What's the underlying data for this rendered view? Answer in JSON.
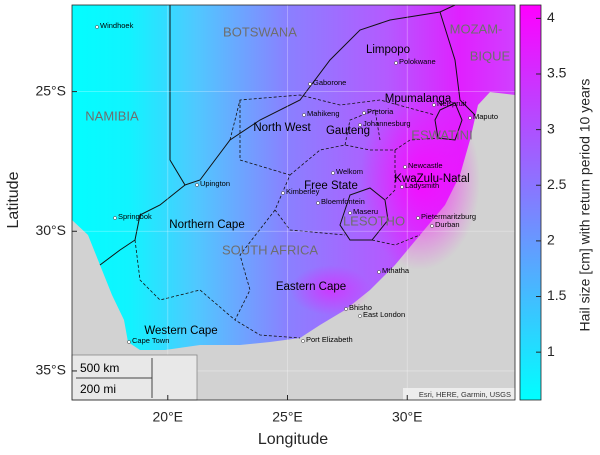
{
  "chart_data": {
    "type": "map",
    "x_label": "Longitude",
    "y_label": "Latitude",
    "xlim": [
      16,
      34.5
    ],
    "ylim": [
      -36.04,
      -21.9
    ],
    "xticks": [
      {
        "value": 20,
        "label": "20°E"
      },
      {
        "value": 25,
        "label": "25°E"
      },
      {
        "value": 30,
        "label": "30°E"
      }
    ],
    "yticks": [
      {
        "value": -25,
        "label": "25°S"
      },
      {
        "value": -30,
        "label": "30°S"
      },
      {
        "value": -35,
        "label": "35°S"
      }
    ],
    "grid": true,
    "colorbar": {
      "label": "Hail size [cm] with return period 10 years",
      "lim": [
        0.57,
        4.12
      ],
      "ticks": [
        1,
        1.5,
        2,
        2.5,
        3,
        3.5,
        4
      ],
      "colors": [
        "#00ffff",
        "#ff00ff"
      ]
    },
    "countries": [
      "BOTSWANA",
      "NAMIBIA",
      "SOUTH AFRICA",
      "LESOTHO",
      "ESWATINI",
      "MOZAM-",
      "BIQUE"
    ],
    "provinces": [
      "Limpopo",
      "Mpumalanga",
      "North West",
      "Gauteng",
      "Free State",
      "KwaZulu-Natal",
      "Northern Cape",
      "Eastern Cape",
      "Western Cape"
    ],
    "cities": [
      "Windhoek",
      "Polokwane",
      "Gaborone",
      "Nelspruit",
      "Maputo",
      "Mahikeng",
      "Pretoria",
      "Johannesburg",
      "Upington",
      "Welkom",
      "Newcastle",
      "Kimberley",
      "Ladysmith",
      "Bloemfontein",
      "Maseru",
      "Springbok",
      "Pietermaritzburg",
      "Durban",
      "Mthatha",
      "Bhisho",
      "East London",
      "Cape Town",
      "Port Elizabeth"
    ],
    "scale_bar": [
      "500 km",
      "200 mi"
    ],
    "attribution": "Esri, HERE, Garmin, USGS"
  }
}
